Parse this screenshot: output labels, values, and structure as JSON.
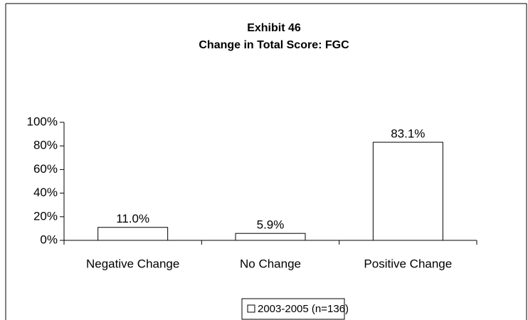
{
  "chart_data": {
    "type": "bar",
    "title": "Exhibit 46",
    "subtitle": "Change in Total Score: FGC",
    "categories": [
      "Negative Change",
      "No Change",
      "Positive Change"
    ],
    "series": [
      {
        "name": "2003-2005 (n=136)",
        "color": "#ffffff",
        "values": [
          11.0,
          5.9,
          83.1
        ],
        "value_labels": [
          "11.0%",
          "5.9%",
          "83.1%"
        ]
      }
    ],
    "ylim": [
      0,
      100
    ],
    "yticks": [
      {
        "value": 0,
        "label": "0%"
      },
      {
        "value": 20,
        "label": "20%"
      },
      {
        "value": 40,
        "label": "40%"
      },
      {
        "value": 60,
        "label": "60%"
      },
      {
        "value": 80,
        "label": "80%"
      },
      {
        "value": 100,
        "label": "100%"
      }
    ],
    "grid": false,
    "legend": "bottom"
  }
}
